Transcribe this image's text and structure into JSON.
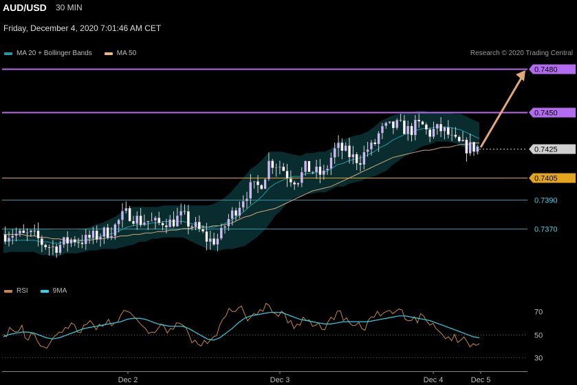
{
  "header": {
    "pair": "AUD/USD",
    "timeframe": "30 MIN",
    "datetime": "Friday, December 4, 2020 7:01:46 AM CET"
  },
  "legend_main": {
    "item1": "MA 20 + Bollinger Bands",
    "item2": "MA 50",
    "color1": "#1f9aa6",
    "color2": "#e8b985"
  },
  "legend_rsi": {
    "item1": "RSI",
    "item2": "9MA",
    "color1": "#c8873a",
    "color2": "#29d5ee"
  },
  "copyright": "Research © 2020 Trading Central",
  "colors": {
    "resistance": "#b36cf0",
    "pivot": "#e3a51c",
    "support": "#2a9aa8",
    "last": "#d0d0d0",
    "candle_up": "#c9b9f5",
    "candle_down": "#ffffff",
    "arrow": "#e3a878"
  },
  "chart_data": [
    {
      "type": "candlestick",
      "title": "AUD/USD",
      "y_unit": "price",
      "ylim": [
        0.7344,
        0.7494
      ],
      "x_ticks": [
        "Dec 2",
        "Dec 3",
        "Dec 4",
        "Dec 5"
      ],
      "levels": [
        {
          "value": 0.748,
          "label": "0.7480",
          "kind": "resistance"
        },
        {
          "value": 0.745,
          "label": "0.7450",
          "kind": "resistance"
        },
        {
          "value": 0.7425,
          "label": "0.7425",
          "kind": "last"
        },
        {
          "value": 0.7405,
          "label": "0.7405",
          "kind": "pivot"
        },
        {
          "value": 0.739,
          "label": "0.7390",
          "kind": "support"
        },
        {
          "value": 0.737,
          "label": "0.7370",
          "kind": "support"
        }
      ],
      "close_trend": [
        0.7366,
        0.7367,
        0.7366,
        0.7365,
        0.7366,
        0.7364,
        0.736,
        0.7358,
        0.7357,
        0.7359,
        0.7361,
        0.7363,
        0.7362,
        0.7362,
        0.7364,
        0.7365,
        0.7367,
        0.7368,
        0.7372,
        0.7378,
        0.7381,
        0.7378,
        0.7375,
        0.7376,
        0.7374,
        0.7373,
        0.7376,
        0.7374,
        0.7377,
        0.7379,
        0.7373,
        0.7371,
        0.7367,
        0.7362,
        0.7362,
        0.7364,
        0.7374,
        0.738,
        0.7386,
        0.7393,
        0.7398,
        0.7398,
        0.7403,
        0.7416,
        0.7415,
        0.7413,
        0.7407,
        0.7404,
        0.7405,
        0.7412,
        0.741,
        0.7408,
        0.7407,
        0.7418,
        0.7426,
        0.7424,
        0.7421,
        0.7418,
        0.7418,
        0.7425,
        0.7426,
        0.7436,
        0.7439,
        0.744,
        0.7441,
        0.7439,
        0.7437,
        0.7441,
        0.7441,
        0.7435,
        0.7438,
        0.7438,
        0.7436,
        0.743,
        0.7428,
        0.7426,
        0.7426,
        0.7426
      ],
      "ma20": [
        0.7361,
        0.7362,
        0.7362,
        0.7362,
        0.7362,
        0.7362,
        0.7361,
        0.7361,
        0.736,
        0.736,
        0.7361,
        0.7361,
        0.7361,
        0.7362,
        0.7363,
        0.7364,
        0.7365,
        0.7366,
        0.7367,
        0.7369,
        0.7371,
        0.7372,
        0.7373,
        0.7373,
        0.7374,
        0.7374,
        0.7375,
        0.7375,
        0.7375,
        0.7375,
        0.7374,
        0.7373,
        0.7372,
        0.7371,
        0.7371,
        0.7372,
        0.7374,
        0.7376,
        0.7379,
        0.7382,
        0.7386,
        0.7389,
        0.7393,
        0.7398,
        0.7401,
        0.7403,
        0.7405,
        0.7406,
        0.7406,
        0.7408,
        0.7408,
        0.7409,
        0.7409,
        0.7411,
        0.7414,
        0.7415,
        0.7417,
        0.7418,
        0.7419,
        0.7421,
        0.7423,
        0.7426,
        0.7428,
        0.7431,
        0.7433,
        0.7435,
        0.7436,
        0.7438,
        0.7439,
        0.7439,
        0.744,
        0.744,
        0.744,
        0.7439,
        0.7438,
        0.7436,
        0.7434,
        0.7432
      ],
      "bb_width": [
        0.0008,
        0.0008,
        0.0008,
        0.0008,
        0.0008,
        0.0008,
        0.0009,
        0.0009,
        0.0009,
        0.0009,
        0.0008,
        0.0008,
        0.0008,
        0.0008,
        0.0008,
        0.0009,
        0.0009,
        0.001,
        0.0011,
        0.0012,
        0.0013,
        0.0013,
        0.0012,
        0.0012,
        0.0011,
        0.0011,
        0.0011,
        0.0011,
        0.0011,
        0.0011,
        0.0012,
        0.0013,
        0.0014,
        0.0015,
        0.0016,
        0.0017,
        0.0018,
        0.002,
        0.0022,
        0.0024,
        0.0025,
        0.0025,
        0.0025,
        0.0025,
        0.0022,
        0.002,
        0.0017,
        0.0015,
        0.0014,
        0.0014,
        0.0014,
        0.0014,
        0.0014,
        0.0014,
        0.0015,
        0.0016,
        0.0016,
        0.0016,
        0.0016,
        0.0016,
        0.0017,
        0.0018,
        0.0018,
        0.0017,
        0.0016,
        0.0015,
        0.0014,
        0.0013,
        0.0012,
        0.0011,
        0.001,
        0.001,
        0.001,
        0.001,
        0.0011,
        0.0011,
        0.0011,
        0.0011
      ],
      "ma50": [
        0.7366,
        0.7366,
        0.7366,
        0.7366,
        0.7365,
        0.7365,
        0.7364,
        0.7364,
        0.7363,
        0.7363,
        0.7362,
        0.7362,
        0.7362,
        0.7362,
        0.7362,
        0.7363,
        0.7363,
        0.7364,
        0.7364,
        0.7365,
        0.7365,
        0.7366,
        0.7366,
        0.7367,
        0.7367,
        0.7368,
        0.7368,
        0.7369,
        0.7369,
        0.737,
        0.737,
        0.7371,
        0.7371,
        0.7371,
        0.7372,
        0.7372,
        0.7373,
        0.7374,
        0.7376,
        0.7378,
        0.7379,
        0.7381,
        0.7382,
        0.7383,
        0.7384,
        0.7386,
        0.7388,
        0.739,
        0.7392,
        0.7394,
        0.7396,
        0.7397,
        0.7398,
        0.7399,
        0.7401,
        0.7403,
        0.7405,
        0.7407,
        0.7409,
        0.7411,
        0.7413,
        0.7415,
        0.7417,
        0.7419,
        0.742,
        0.7421,
        0.7422,
        0.7423,
        0.7424,
        0.7424,
        0.7425,
        0.7426,
        0.7426,
        0.7427,
        0.7428,
        0.7428,
        0.7429,
        0.7429
      ],
      "forecast_arrow": {
        "from": 0.7426,
        "to": 0.748
      }
    },
    {
      "type": "line",
      "title": "RSI",
      "ylim": [
        24,
        78
      ],
      "y_ticks": [
        70,
        50,
        30
      ],
      "series": [
        {
          "name": "RSI",
          "values": [
            50,
            56,
            52,
            58,
            45,
            50,
            40,
            38,
            47,
            52,
            56,
            60,
            52,
            58,
            62,
            54,
            57,
            63,
            60,
            67,
            70,
            66,
            60,
            55,
            52,
            55,
            57,
            55,
            60,
            58,
            50,
            45,
            40,
            42,
            48,
            58,
            66,
            70,
            73,
            68,
            65,
            67,
            70,
            75,
            68,
            70,
            60,
            55,
            58,
            62,
            57,
            60,
            54,
            65,
            70,
            62,
            60,
            58,
            55,
            62,
            65,
            66,
            70,
            68,
            72,
            63,
            62,
            60,
            66,
            58,
            55,
            50,
            48,
            50,
            45,
            44,
            42,
            42
          ]
        },
        {
          "name": "9MA",
          "values": [
            48,
            50,
            51,
            52,
            52,
            51,
            49,
            47,
            46,
            47,
            49,
            51,
            53,
            55,
            56,
            57,
            58,
            59,
            60,
            61,
            63,
            64,
            64,
            63,
            61,
            59,
            58,
            57,
            57,
            57,
            55,
            52,
            49,
            46,
            45,
            47,
            51,
            55,
            60,
            64,
            66,
            67,
            68,
            69,
            69,
            69,
            67,
            65,
            63,
            62,
            61,
            60,
            59,
            59,
            60,
            61,
            61,
            61,
            61,
            61,
            62,
            63,
            64,
            65,
            66,
            66,
            65,
            64,
            63,
            62,
            60,
            58,
            56,
            54,
            52,
            50,
            48,
            47
          ]
        }
      ]
    }
  ]
}
